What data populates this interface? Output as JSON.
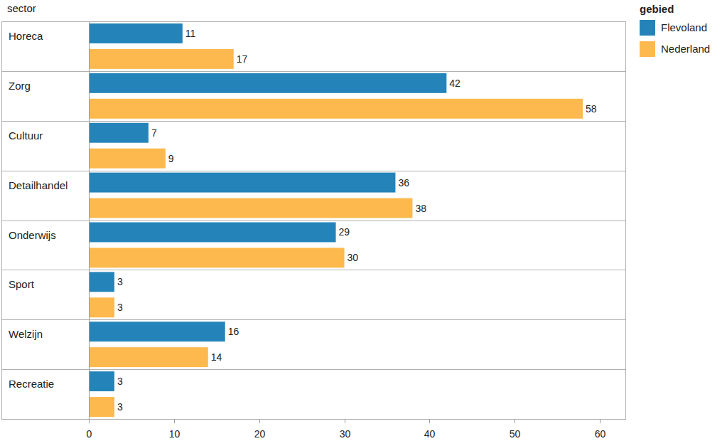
{
  "chart_data": {
    "type": "bar",
    "orientation": "horizontal",
    "y_label": "sector",
    "legend_title": "gebied",
    "categories": [
      "Horeca",
      "Zorg",
      "Cultuur",
      "Detailhandel",
      "Onderwijs",
      "Sport",
      "Welzijn",
      "Recreatie"
    ],
    "series": [
      {
        "name": "Flevoland",
        "color": "#2484b9",
        "values": [
          11,
          42,
          7,
          36,
          29,
          3,
          16,
          3
        ]
      },
      {
        "name": "Nederland",
        "color": "#fdb94d",
        "values": [
          17,
          58,
          9,
          38,
          30,
          3,
          14,
          3
        ]
      }
    ],
    "xlim": [
      0,
      63
    ],
    "xticks": [
      0,
      10,
      20,
      30,
      40,
      50,
      60
    ],
    "data_labels": true,
    "legend": "top-right",
    "grid": false
  }
}
